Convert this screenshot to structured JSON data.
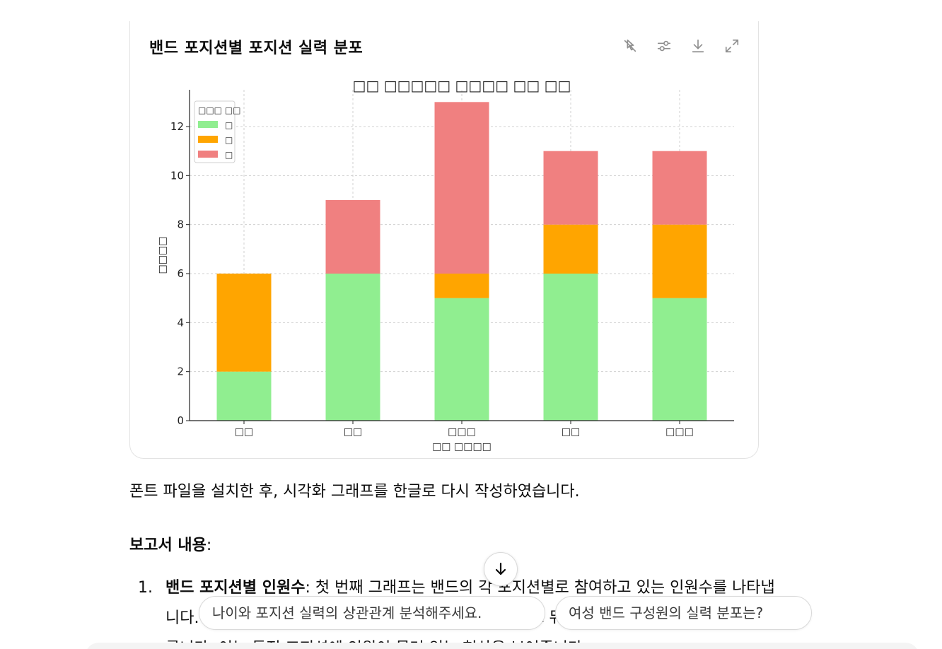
{
  "card": {
    "title": "밴드 포지션별 포지션 실력 분포",
    "toolbar": [
      {
        "name": "switch-interactive-icon",
        "label": ""
      },
      {
        "name": "settings-sliders-icon",
        "label": ""
      },
      {
        "name": "download-icon",
        "label": ""
      },
      {
        "name": "expand-icon",
        "label": ""
      }
    ]
  },
  "chart_data": {
    "type": "bar",
    "stacked": true,
    "title": "□□ □□□□□ □□□□ □□ □□",
    "xlabel": "□□ □□□□",
    "ylabel": "□□□□",
    "categories": [
      "□□",
      "□□",
      "□□□",
      "□□",
      "□□□"
    ],
    "series": [
      {
        "name": "□",
        "color": "#90ee90",
        "values": [
          2,
          6,
          5,
          6,
          5
        ]
      },
      {
        "name": "□",
        "color": "#ffa500",
        "values": [
          4,
          0,
          1,
          2,
          3
        ]
      },
      {
        "name": "□",
        "color": "#f08080",
        "values": [
          0,
          3,
          7,
          3,
          3
        ]
      }
    ],
    "legend_title": "□□□ □□",
    "legend_position": "top-left",
    "ylim": [
      0,
      13.5
    ],
    "yticks": [
      0,
      2,
      4,
      6,
      8,
      10,
      12
    ],
    "grid": true
  },
  "paragraph": "폰트 파일을 설치한 후, 시각화 그래프를 한글로 다시 작성하였습니다.",
  "report": {
    "heading": "보고서 내용",
    "heading_suffix": ":",
    "item1": {
      "number": "1.",
      "title": "밴드 포지션별 인원수",
      "line1_text": ": 첫 번째 그래프는 밴드의 각 포지션별로 참여하고 있는 인원수를 나타냅",
      "line2_text": "니다. 드럼 포지션이 가장 많은 인원을 보유하고 있으며, 그 뒤를 다른 포지션이 뒤따",
      "line3_text": "릅니다. 이는 특정 포지션에 인원이 몰려 있는 현상을 보여줍니다."
    }
  },
  "suggestions": [
    "나이와 포지션 실력의 상관관계 분석해주세요.",
    "여성 밴드 구성원의 실력 분포는?"
  ]
}
